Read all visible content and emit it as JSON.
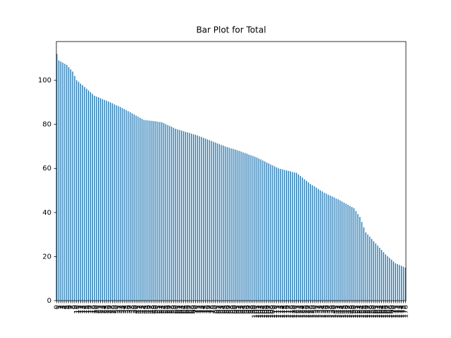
{
  "chart_data": {
    "type": "bar",
    "title": "Bar Plot for Total",
    "categories": [
      "0",
      "1",
      "2",
      "3",
      "4",
      "5",
      "6",
      "7",
      "8",
      "9",
      "10",
      "11",
      "12",
      "13",
      "14",
      "15",
      "16",
      "17",
      "18",
      "19",
      "20",
      "21",
      "22",
      "23",
      "24",
      "25",
      "26",
      "27",
      "28",
      "29",
      "30",
      "31",
      "32",
      "33",
      "34",
      "35",
      "36",
      "37",
      "38",
      "39",
      "40",
      "41",
      "42",
      "43",
      "44",
      "45",
      "46",
      "47",
      "48",
      "49",
      "50",
      "51",
      "52",
      "53",
      "54",
      "55",
      "56",
      "57",
      "58",
      "59",
      "60",
      "61",
      "62",
      "63",
      "64",
      "65",
      "66",
      "67",
      "68",
      "69",
      "70",
      "71",
      "72",
      "73",
      "74",
      "75",
      "76",
      "77",
      "78",
      "79",
      "80",
      "81",
      "82",
      "83",
      "84",
      "85",
      "86",
      "87",
      "88",
      "89",
      "90",
      "91",
      "92",
      "93",
      "94",
      "95",
      "96",
      "97",
      "98",
      "99",
      "100",
      "101",
      "102",
      "103",
      "104",
      "105",
      "106",
      "107",
      "108",
      "109",
      "110",
      "111",
      "112",
      "113",
      "114",
      "115",
      "116",
      "117",
      "118",
      "119",
      "120",
      "121",
      "122",
      "123",
      "124",
      "125",
      "126",
      "127",
      "128",
      "129",
      "130",
      "131",
      "132",
      "133",
      "134",
      "135",
      "136",
      "137",
      "138",
      "139",
      "140",
      "141",
      "142",
      "143",
      "144",
      "145",
      "146",
      "147",
      "148",
      "149",
      "150",
      "151",
      "152",
      "153",
      "154",
      "155",
      "156",
      "157",
      "158",
      "159",
      "160",
      "161",
      "162",
      "163",
      "164",
      "165",
      "166",
      "167",
      "168",
      "169",
      "170",
      "171",
      "172",
      "173",
      "174",
      "175",
      "176"
    ],
    "values": [
      112.0,
      109.0,
      108.5,
      108.0,
      107.5,
      107.0,
      106.0,
      105.0,
      104.0,
      102.0,
      100.0,
      99.3,
      98.5,
      97.8,
      97.0,
      96.2,
      95.4,
      94.6,
      93.8,
      93.0,
      92.6,
      92.3,
      91.9,
      91.5,
      91.1,
      90.8,
      90.4,
      90.0,
      89.6,
      89.1,
      88.7,
      88.3,
      87.9,
      87.4,
      87.0,
      86.5,
      86.0,
      85.5,
      85.0,
      84.5,
      84.0,
      83.5,
      83.0,
      82.5,
      82.0,
      81.9,
      81.8,
      81.7,
      81.6,
      81.5,
      81.4,
      81.2,
      81.1,
      81.0,
      80.6,
      80.1,
      79.7,
      79.3,
      78.9,
      78.4,
      78.0,
      77.7,
      77.5,
      77.2,
      76.9,
      76.6,
      76.4,
      76.1,
      75.8,
      75.5,
      75.3,
      75.0,
      74.6,
      74.3,
      73.9,
      73.6,
      73.2,
      72.9,
      72.5,
      72.1,
      71.8,
      71.4,
      71.1,
      70.7,
      70.4,
      70.0,
      69.7,
      69.4,
      69.1,
      68.9,
      68.6,
      68.3,
      68.0,
      67.7,
      67.3,
      67.0,
      66.7,
      66.3,
      66.0,
      65.7,
      65.3,
      65.0,
      64.5,
      64.1,
      63.6,
      63.2,
      62.7,
      62.3,
      61.8,
      61.4,
      60.9,
      60.5,
      60.0,
      59.8,
      59.6,
      59.3,
      59.1,
      58.9,
      58.7,
      58.4,
      58.2,
      58.0,
      57.3,
      56.6,
      55.9,
      55.1,
      54.4,
      53.7,
      53.0,
      52.4,
      51.9,
      51.3,
      50.7,
      50.1,
      49.6,
      49.0,
      48.6,
      48.1,
      47.7,
      47.3,
      46.9,
      46.4,
      46.0,
      45.5,
      45.0,
      44.5,
      44.0,
      43.5,
      43.0,
      42.5,
      42.0,
      40.7,
      39.3,
      38.0,
      35.7,
      33.3,
      31.0,
      30,
      29,
      28,
      27,
      26,
      25,
      24,
      23,
      22,
      21,
      20.2,
      19.4,
      18.6,
      17.8,
      17.0,
      16.6,
      16.2,
      15.8,
      15.4,
      15.0
    ],
    "color": "#1f77b4",
    "ylim": [
      0,
      117.6
    ],
    "yticks": [
      0,
      20,
      40,
      60,
      80,
      100
    ],
    "grid": false
  }
}
